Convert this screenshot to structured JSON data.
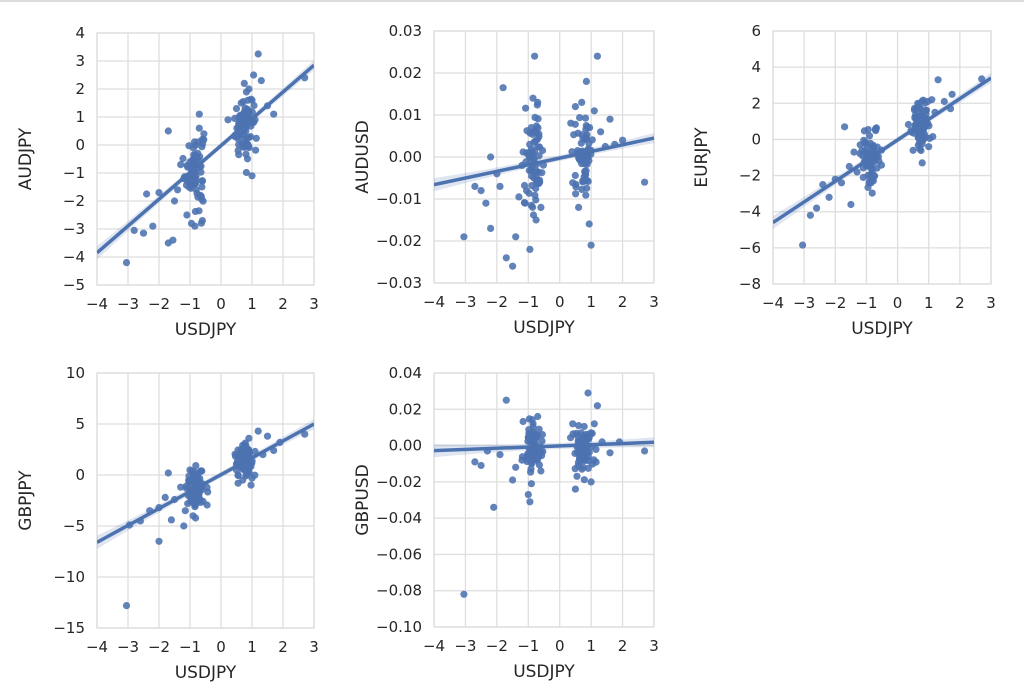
{
  "figure": {
    "background": "#ffffff",
    "grid_color": "#dedede",
    "point_color": "#4c72b0",
    "line_color": "#4c72b0"
  },
  "chart_data": [
    {
      "type": "scatter",
      "regression": true,
      "xlabel": "USDJPY",
      "ylabel": "AUDJPY",
      "xlim": [
        -4,
        3
      ],
      "ylim": [
        -5,
        4
      ],
      "xticks": [
        "−4",
        "−3",
        "−2",
        "−1",
        "0",
        "1",
        "2",
        "3"
      ],
      "yticks": [
        "−5",
        "−4",
        "−3",
        "−2",
        "−1",
        "0",
        "1",
        "2",
        "3",
        "4"
      ],
      "grid": true,
      "regression_line": {
        "x": [
          -4,
          3
        ],
        "y": [
          -3.85,
          2.85
        ]
      },
      "points": [
        [
          -3.05,
          -4.2
        ],
        [
          -2.8,
          -3.05
        ],
        [
          -2.5,
          -3.15
        ],
        [
          -2.4,
          -1.75
        ],
        [
          -2.2,
          -2.9
        ],
        [
          -2.0,
          -1.7
        ],
        [
          -1.7,
          -3.5
        ],
        [
          -1.55,
          -3.4
        ],
        [
          -1.7,
          0.5
        ],
        [
          -1.5,
          -2.0
        ],
        [
          -1.4,
          -1.6
        ],
        [
          -1.3,
          -0.7
        ],
        [
          -1.2,
          -1.2
        ],
        [
          -1.1,
          -2.5
        ],
        [
          -1.0,
          -1.1
        ],
        [
          -1.0,
          -0.6
        ],
        [
          -0.95,
          -2.8
        ],
        [
          -0.9,
          -0.9
        ],
        [
          -0.85,
          -1.3
        ],
        [
          -0.8,
          -0.5
        ],
        [
          -0.8,
          -1.6
        ],
        [
          -0.75,
          -0.3
        ],
        [
          -0.7,
          0.6
        ],
        [
          -0.7,
          1.1
        ],
        [
          -0.6,
          0.2
        ],
        [
          -0.6,
          -2.7
        ],
        [
          -0.55,
          0.4
        ],
        [
          0.45,
          0.3
        ],
        [
          0.5,
          1.3
        ],
        [
          0.55,
          -0.2
        ],
        [
          0.6,
          0.8
        ],
        [
          0.65,
          1.5
        ],
        [
          0.7,
          0.6
        ],
        [
          0.75,
          2.2
        ],
        [
          0.8,
          0.5
        ],
        [
          0.85,
          1.0
        ],
        [
          0.9,
          2.0
        ],
        [
          0.95,
          0.3
        ],
        [
          1.0,
          -1.1
        ],
        [
          1.0,
          1.6
        ],
        [
          1.05,
          2.5
        ],
        [
          1.1,
          0.9
        ],
        [
          1.2,
          3.25
        ],
        [
          1.3,
          2.3
        ],
        [
          1.5,
          1.4
        ],
        [
          1.7,
          1.1
        ],
        [
          2.7,
          2.4
        ]
      ],
      "clusters": [
        {
          "cx": -0.85,
          "cy": -0.9,
          "sx": 0.15,
          "sy": 0.7,
          "n": 70
        },
        {
          "cx": 0.75,
          "cy": 0.7,
          "sx": 0.15,
          "sy": 0.55,
          "n": 70
        }
      ]
    },
    {
      "type": "scatter",
      "regression": true,
      "xlabel": "USDJPY",
      "ylabel": "AUDUSD",
      "xlim": [
        -4,
        3
      ],
      "ylim": [
        -0.03,
        0.03
      ],
      "xticks": [
        "−4",
        "−3",
        "−2",
        "−1",
        "0",
        "1",
        "2",
        "3"
      ],
      "yticks": [
        "−0.03",
        "−0.02",
        "−0.01",
        "0.00",
        "0.01",
        "0.02",
        "0.03"
      ],
      "grid": true,
      "regression_line": {
        "x": [
          -4,
          3
        ],
        "y": [
          -0.0066,
          0.0045
        ]
      },
      "points": [
        [
          -3.05,
          -0.019
        ],
        [
          -2.7,
          -0.007
        ],
        [
          -2.5,
          -0.008
        ],
        [
          -2.35,
          -0.011
        ],
        [
          -2.2,
          0.0
        ],
        [
          -2.2,
          -0.017
        ],
        [
          -2.0,
          -0.004
        ],
        [
          -1.9,
          -0.007
        ],
        [
          -1.8,
          0.0165
        ],
        [
          -1.7,
          -0.024
        ],
        [
          -1.5,
          -0.026
        ],
        [
          -1.4,
          -0.019
        ],
        [
          -1.3,
          -0.0095
        ],
        [
          -1.2,
          -0.002
        ],
        [
          -1.1,
          -0.011
        ],
        [
          -0.95,
          -0.022
        ],
        [
          -0.9,
          0.007
        ],
        [
          -0.85,
          0.014
        ],
        [
          -0.8,
          0.024
        ],
        [
          -0.75,
          -0.015
        ],
        [
          -0.7,
          0.013
        ],
        [
          -0.6,
          -0.012
        ],
        [
          0.5,
          0.012
        ],
        [
          0.6,
          -0.012
        ],
        [
          0.7,
          0.013
        ],
        [
          0.85,
          0.018
        ],
        [
          0.9,
          0.0
        ],
        [
          0.95,
          0.007
        ],
        [
          1.0,
          -0.021
        ],
        [
          1.1,
          0.011
        ],
        [
          1.2,
          0.024
        ],
        [
          1.3,
          0.006
        ],
        [
          1.45,
          0.0025
        ],
        [
          1.6,
          0.009
        ],
        [
          1.75,
          0.003
        ],
        [
          2.0,
          0.004
        ],
        [
          2.7,
          -0.006
        ]
      ],
      "clusters": [
        {
          "cx": -0.8,
          "cy": -0.0005,
          "sx": 0.15,
          "sy": 0.0055,
          "n": 70
        },
        {
          "cx": 0.75,
          "cy": 0.0,
          "sx": 0.15,
          "sy": 0.0045,
          "n": 70
        }
      ]
    },
    {
      "type": "scatter",
      "regression": true,
      "xlabel": "USDJPY",
      "ylabel": "EURJPY",
      "xlim": [
        -4,
        3
      ],
      "ylim": [
        -8,
        6
      ],
      "xticks": [
        "−4",
        "−3",
        "−2",
        "−1",
        "0",
        "1",
        "2",
        "3"
      ],
      "yticks": [
        "−8",
        "−6",
        "−4",
        "−2",
        "0",
        "2",
        "4",
        "6"
      ],
      "grid": true,
      "regression_line": {
        "x": [
          -4,
          3
        ],
        "y": [
          -4.6,
          3.4
        ]
      },
      "points": [
        [
          -3.05,
          -5.85
        ],
        [
          -2.8,
          -4.2
        ],
        [
          -2.6,
          -3.8
        ],
        [
          -2.4,
          -2.5
        ],
        [
          -2.2,
          -3.2
        ],
        [
          -2.0,
          -2.2
        ],
        [
          -1.8,
          -2.4
        ],
        [
          -1.7,
          0.7
        ],
        [
          -1.55,
          -1.5
        ],
        [
          -1.5,
          -3.6
        ],
        [
          -1.4,
          -0.7
        ],
        [
          -1.3,
          -1.8
        ],
        [
          -1.2,
          -0.3
        ],
        [
          -1.1,
          -2.1
        ],
        [
          -1.0,
          -1.2
        ],
        [
          -0.9,
          0.2
        ],
        [
          -0.85,
          -2.4
        ],
        [
          -0.8,
          -0.4
        ],
        [
          -0.7,
          0.6
        ],
        [
          -0.6,
          -1.2
        ],
        [
          0.45,
          0.4
        ],
        [
          0.5,
          -0.6
        ],
        [
          0.6,
          1.2
        ],
        [
          0.65,
          2.0
        ],
        [
          0.7,
          -0.2
        ],
        [
          0.8,
          0.8
        ],
        [
          0.9,
          1.6
        ],
        [
          1.0,
          -0.4
        ],
        [
          1.1,
          2.2
        ],
        [
          1.2,
          1.5
        ],
        [
          1.3,
          3.3
        ],
        [
          1.5,
          2.1
        ],
        [
          1.7,
          1.7
        ],
        [
          1.75,
          2.5
        ],
        [
          2.7,
          3.35
        ]
      ],
      "clusters": [
        {
          "cx": -0.85,
          "cy": -1.0,
          "sx": 0.15,
          "sy": 0.8,
          "n": 70
        },
        {
          "cx": 0.75,
          "cy": 0.8,
          "sx": 0.15,
          "sy": 0.65,
          "n": 70
        }
      ]
    },
    {
      "type": "scatter",
      "regression": true,
      "xlabel": "USDJPY",
      "ylabel": "GBPJPY",
      "xlim": [
        -4,
        3
      ],
      "ylim": [
        -15,
        10
      ],
      "xticks": [
        "−4",
        "−3",
        "−2",
        "−1",
        "0",
        "1",
        "2",
        "3"
      ],
      "yticks": [
        "−15",
        "−10",
        "−5",
        "0",
        "5",
        "10"
      ],
      "grid": true,
      "regression_line": {
        "x": [
          -4,
          3
        ],
        "y": [
          -6.6,
          5.0
        ]
      },
      "points": [
        [
          -3.05,
          -12.8
        ],
        [
          -2.95,
          -4.9
        ],
        [
          -2.6,
          -4.5
        ],
        [
          -2.3,
          -3.5
        ],
        [
          -2.0,
          -6.5
        ],
        [
          -2.0,
          -3.2
        ],
        [
          -1.8,
          -2.2
        ],
        [
          -1.7,
          0.2
        ],
        [
          -1.6,
          -4.4
        ],
        [
          -1.5,
          -2.4
        ],
        [
          -1.3,
          -1.2
        ],
        [
          -1.2,
          -5.0
        ],
        [
          -1.15,
          -3.5
        ],
        [
          -1.0,
          -0.6
        ],
        [
          -0.9,
          -4.0
        ],
        [
          -0.85,
          0.3
        ],
        [
          -0.75,
          -2.6
        ],
        [
          -0.65,
          0.4
        ],
        [
          0.5,
          0.5
        ],
        [
          0.55,
          -0.8
        ],
        [
          0.65,
          2.5
        ],
        [
          0.7,
          -0.5
        ],
        [
          0.8,
          1.6
        ],
        [
          0.9,
          3.6
        ],
        [
          1.0,
          -0.3
        ],
        [
          1.1,
          2.3
        ],
        [
          1.2,
          4.3
        ],
        [
          1.35,
          2.0
        ],
        [
          1.5,
          3.8
        ],
        [
          1.7,
          2.4
        ],
        [
          1.9,
          3.2
        ],
        [
          2.7,
          4.0
        ]
      ],
      "clusters": [
        {
          "cx": -0.8,
          "cy": -1.4,
          "sx": 0.15,
          "sy": 1.1,
          "n": 70
        },
        {
          "cx": 0.75,
          "cy": 1.3,
          "sx": 0.15,
          "sy": 0.95,
          "n": 70
        }
      ]
    },
    {
      "type": "scatter",
      "regression": true,
      "xlabel": "USDJPY",
      "ylabel": "GBPUSD",
      "xlim": [
        -4,
        3
      ],
      "ylim": [
        -0.1,
        0.04
      ],
      "xticks": [
        "−4",
        "−3",
        "−2",
        "−1",
        "0",
        "1",
        "2",
        "3"
      ],
      "yticks": [
        "−0.10",
        "−0.08",
        "−0.06",
        "−0.04",
        "−0.02",
        "0.00",
        "0.02",
        "0.04"
      ],
      "grid": true,
      "regression_line": {
        "x": [
          -4,
          3
        ],
        "y": [
          -0.0028,
          0.0018
        ]
      },
      "points": [
        [
          -3.05,
          -0.082
        ],
        [
          -2.7,
          -0.009
        ],
        [
          -2.5,
          -0.011
        ],
        [
          -2.3,
          -0.003
        ],
        [
          -2.1,
          -0.034
        ],
        [
          -1.9,
          -0.005
        ],
        [
          -1.7,
          0.025
        ],
        [
          -1.5,
          -0.019
        ],
        [
          -1.4,
          -0.012
        ],
        [
          -1.2,
          -0.008
        ],
        [
          -1.0,
          -0.027
        ],
        [
          -0.95,
          -0.031
        ],
        [
          -0.9,
          -0.021
        ],
        [
          -0.85,
          0.012
        ],
        [
          -0.7,
          0.016
        ],
        [
          -0.6,
          -0.014
        ],
        [
          0.5,
          -0.024
        ],
        [
          0.6,
          0.011
        ],
        [
          0.75,
          -0.012
        ],
        [
          0.9,
          0.029
        ],
        [
          1.0,
          -0.02
        ],
        [
          1.1,
          0.012
        ],
        [
          1.2,
          0.022
        ],
        [
          1.35,
          0.002
        ],
        [
          1.6,
          -0.004
        ],
        [
          1.9,
          0.002
        ],
        [
          2.7,
          -0.003
        ]
      ],
      "clusters": [
        {
          "cx": -0.85,
          "cy": 0.0,
          "sx": 0.15,
          "sy": 0.007,
          "n": 70
        },
        {
          "cx": 0.75,
          "cy": -0.002,
          "sx": 0.15,
          "sy": 0.006,
          "n": 70
        }
      ]
    }
  ]
}
